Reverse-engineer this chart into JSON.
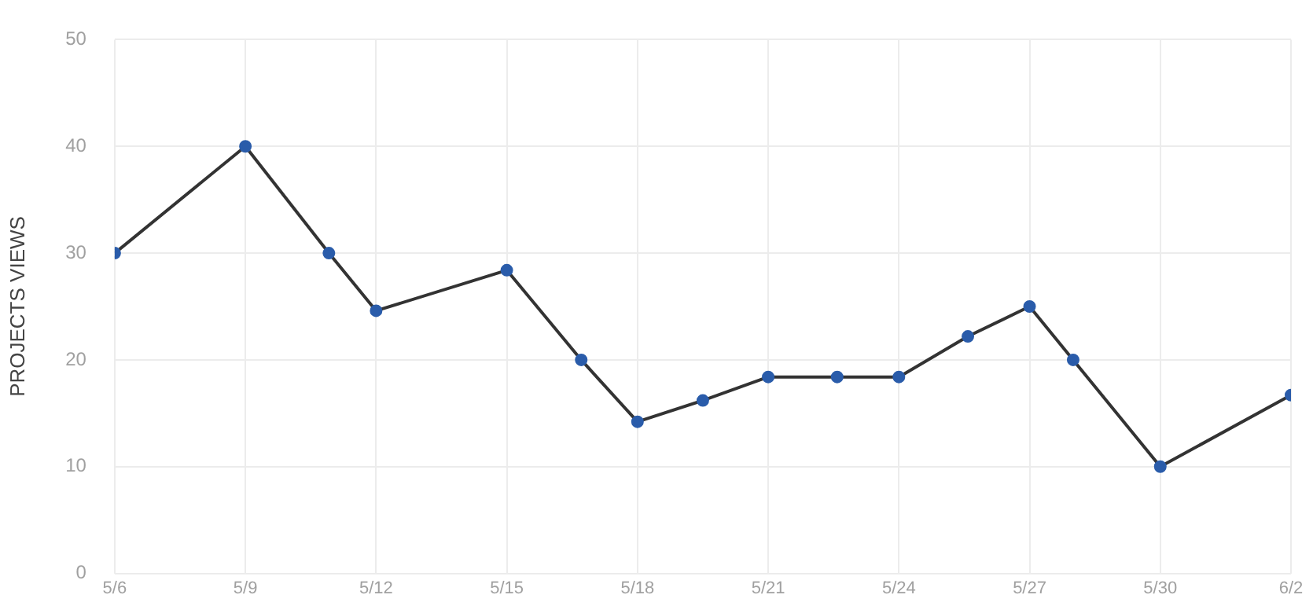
{
  "chart_data": {
    "type": "line",
    "ylabel": "PROJECTS VIEWS",
    "x": [
      "--05-06",
      "--05-09",
      "--05-10T22:00",
      "--05-12",
      "--05-15",
      "--05-16T17:00",
      "--05-18",
      "--05-19T12:00",
      "--05-21",
      "--05-22T14:00",
      "--05-24",
      "--05-25T14:00",
      "--05-27",
      "--05-28",
      "--05-30",
      "--06-02"
    ],
    "series": [
      {
        "color": "#333333",
        "values": [
          30,
          40,
          30,
          24.6,
          28.4,
          20,
          14.2,
          16.2,
          18.4,
          18.4,
          18.4,
          22.2,
          25,
          20,
          10,
          16.7
        ]
      }
    ],
    "xlim": [
      "--05-06",
      "--06-02"
    ],
    "xticks": [
      {
        "value": "--05-06",
        "label": "5/6"
      },
      {
        "value": "--05-09",
        "label": "5/9"
      },
      {
        "value": "--05-12",
        "label": "5/12"
      },
      {
        "value": "--05-15",
        "label": "5/15"
      },
      {
        "value": "--05-18",
        "label": "5/18"
      },
      {
        "value": "--05-21",
        "label": "5/21"
      },
      {
        "value": "--05-24",
        "label": "5/24"
      },
      {
        "value": "--05-27",
        "label": "5/27"
      },
      {
        "value": "--05-30",
        "label": "5/30"
      },
      {
        "value": "--06-02",
        "label": "6/2"
      }
    ],
    "ylim": [
      0,
      50
    ],
    "yticks": [
      0,
      10,
      20,
      30,
      40,
      50
    ],
    "grid": true,
    "marker": "circle",
    "line_style": "solid"
  }
}
